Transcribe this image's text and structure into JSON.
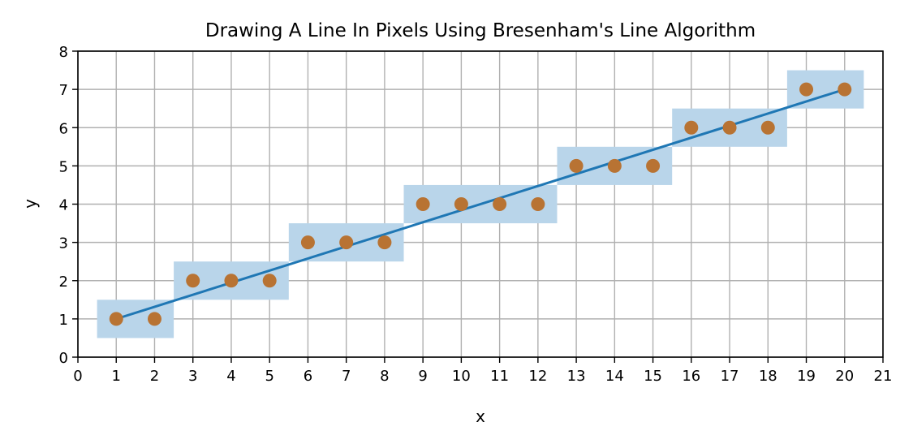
{
  "chart_data": {
    "type": "line",
    "title": "Drawing A Line In Pixels Using Bresenham's Line Algorithm",
    "xlabel": "x",
    "ylabel": "y",
    "xlim": [
      0,
      21
    ],
    "ylim": [
      0,
      8
    ],
    "xticks": [
      0,
      1,
      2,
      3,
      4,
      5,
      6,
      7,
      8,
      9,
      10,
      11,
      12,
      13,
      14,
      15,
      16,
      17,
      18,
      19,
      20,
      21
    ],
    "yticks": [
      0,
      1,
      2,
      3,
      4,
      5,
      6,
      7,
      8
    ],
    "grid": true,
    "line": {
      "x": [
        1,
        20
      ],
      "y": [
        1,
        7
      ],
      "color": "#1f77b4"
    },
    "points": {
      "x": [
        1,
        2,
        3,
        4,
        5,
        6,
        7,
        8,
        9,
        10,
        11,
        12,
        13,
        14,
        15,
        16,
        17,
        18,
        19,
        20
      ],
      "y": [
        1,
        1,
        2,
        2,
        2,
        3,
        3,
        3,
        4,
        4,
        4,
        4,
        5,
        5,
        5,
        6,
        6,
        6,
        7,
        7
      ],
      "color": "#b87333"
    },
    "pixel_runs": [
      {
        "x_start": 1,
        "x_end": 2,
        "y": 1
      },
      {
        "x_start": 3,
        "x_end": 5,
        "y": 2
      },
      {
        "x_start": 6,
        "x_end": 8,
        "y": 3
      },
      {
        "x_start": 9,
        "x_end": 12,
        "y": 4
      },
      {
        "x_start": 13,
        "x_end": 15,
        "y": 5
      },
      {
        "x_start": 16,
        "x_end": 18,
        "y": 6
      },
      {
        "x_start": 19,
        "x_end": 20,
        "y": 7
      }
    ],
    "run_color": "#b9d5ea",
    "grid_color": "#b0b0b0"
  }
}
